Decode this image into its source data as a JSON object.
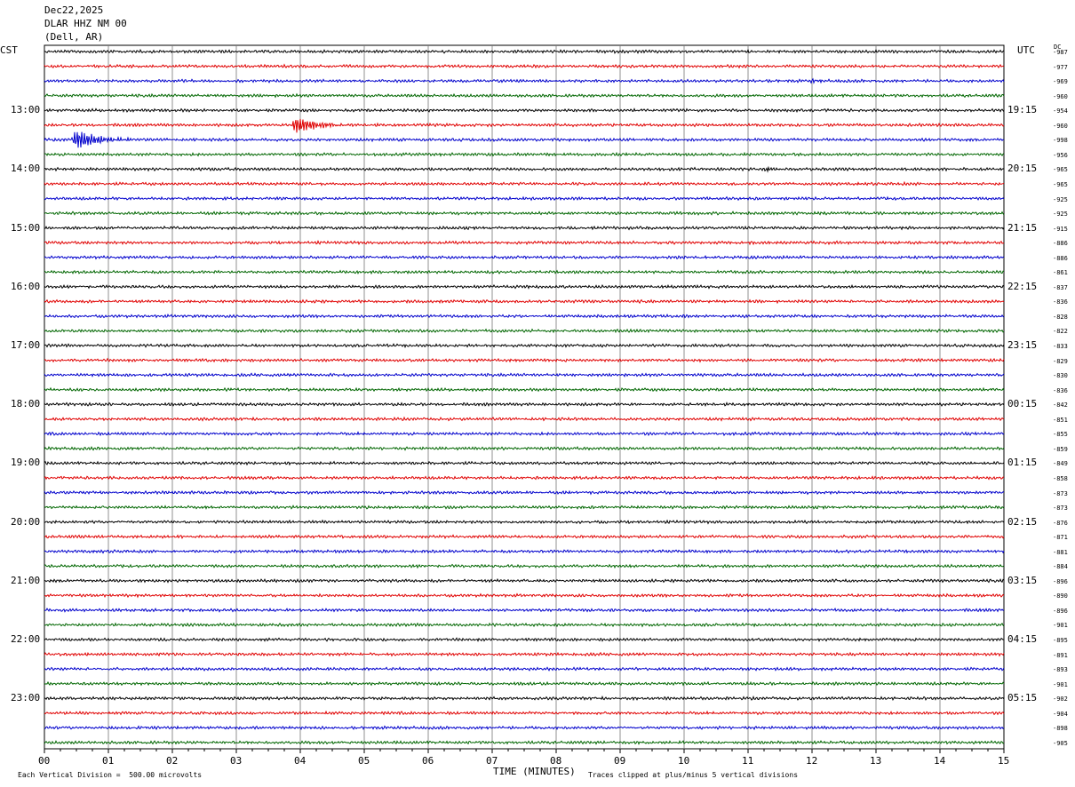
{
  "header": {
    "date": "Dec22,2025",
    "station": "DLAR HHZ NM 00",
    "location": "(Dell, AR)"
  },
  "axis": {
    "left_zone": "CST",
    "right_zone": "UTC",
    "dc_label": "DC",
    "xlabel": "TIME (MINUTES)",
    "scale_note": "Each Vertical Division =  500.00 microvolts",
    "clip_note": "Traces clipped at plus/minus 5 vertical divisions"
  },
  "chart_data": {
    "type": "line",
    "title": "",
    "xlabel": "TIME (MINUTES)",
    "xlim": [
      0,
      15
    ],
    "x_ticks": [
      "00",
      "01",
      "02",
      "03",
      "04",
      "05",
      "06",
      "07",
      "08",
      "09",
      "10",
      "11",
      "12",
      "13",
      "14",
      "15"
    ],
    "trace_colors": [
      "#000000",
      "#e00000",
      "#0000cc",
      "#006600"
    ],
    "trace_count": 48,
    "cst_hour_labels": [
      "13:00",
      "14:00",
      "15:00",
      "16:00",
      "17:00",
      "18:00",
      "19:00",
      "20:00",
      "21:00",
      "22:00",
      "23:00"
    ],
    "utc_hour_labels": [
      "19:15",
      "20:15",
      "21:15",
      "22:15",
      "23:15",
      "00:15",
      "01:15",
      "02:15",
      "03:15",
      "04:15",
      "05:15"
    ],
    "dc_offsets": [
      "-987",
      "-977",
      "-969",
      "-960",
      "-954",
      "-960",
      "-998",
      "-956",
      "-965",
      "-965",
      "-925",
      "-925",
      "-915",
      "-886",
      "-886",
      "-861",
      "-837",
      "-836",
      "-828",
      "-822",
      "-833",
      "-829",
      "-830",
      "-836",
      "-842",
      "-851",
      "-855",
      "-859",
      "-849",
      "-858",
      "-873",
      "-873",
      "-876",
      "-871",
      "-881",
      "-884",
      "-896",
      "-890",
      "-896",
      "-901",
      "-895",
      "-891",
      "-893",
      "-901",
      "-902",
      "-904",
      "-898",
      "-905"
    ],
    "events": [
      {
        "trace": 5,
        "minute": 3.93,
        "amplitude": 2.2
      },
      {
        "trace": 6,
        "minute": 0.5,
        "amplitude": 2.6
      },
      {
        "trace": 8,
        "minute": 11.32,
        "amplitude": 0.7
      },
      {
        "trace": 2,
        "minute": 12.02,
        "amplitude": 0.5
      }
    ]
  }
}
